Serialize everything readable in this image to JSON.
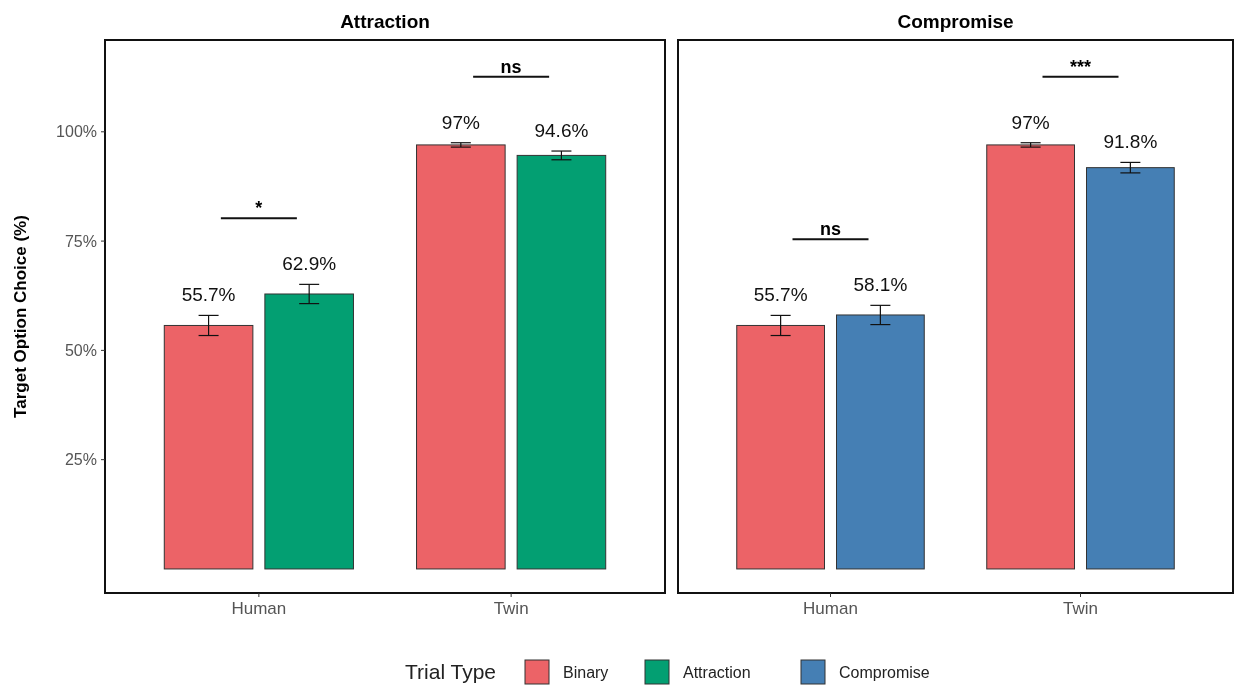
{
  "chart_data": [
    {
      "type": "bar",
      "title": "Attraction",
      "ylabel": "Target Option Choice (%)",
      "categories": [
        "Human",
        "Twin"
      ],
      "series": [
        {
          "name": "Binary",
          "color": "#ec6367",
          "values": [
            55.7,
            97
          ],
          "errors": [
            2.3,
            0.5
          ],
          "value_labels": [
            "55.7%",
            "97%"
          ]
        },
        {
          "name": "Attraction",
          "color": "#039f72",
          "values": [
            62.9,
            94.6
          ],
          "errors": [
            2.2,
            1.0
          ],
          "value_labels": [
            "62.9%",
            "94.6%"
          ]
        }
      ],
      "ylim": [
        -5.5,
        121
      ],
      "yticks": [
        {
          "value": 25,
          "label": "25%"
        },
        {
          "value": 50,
          "label": "50%"
        },
        {
          "value": 75,
          "label": "75%"
        },
        {
          "value": 100,
          "label": "100%"
        }
      ],
      "annotations": [
        "*",
        "ns"
      ],
      "legend": "bottom",
      "legend_title": "Trial Type"
    },
    {
      "type": "bar",
      "title": "Compromise",
      "categories": [
        "Human",
        "Twin"
      ],
      "series": [
        {
          "name": "Binary",
          "color": "#ec6367",
          "values": [
            55.7,
            97
          ],
          "errors": [
            2.3,
            0.5
          ],
          "value_labels": [
            "55.7%",
            "97%"
          ]
        },
        {
          "name": "Compromise",
          "color": "#457fb4",
          "values": [
            58.1,
            91.8
          ],
          "errors": [
            2.2,
            1.2
          ],
          "value_labels": [
            "58.1%",
            "91.8%"
          ]
        }
      ],
      "ylim": [
        -5.5,
        121
      ],
      "tick_labels": "x",
      "annotations": [
        "ns",
        "***"
      ],
      "legend": "bottom"
    }
  ]
}
